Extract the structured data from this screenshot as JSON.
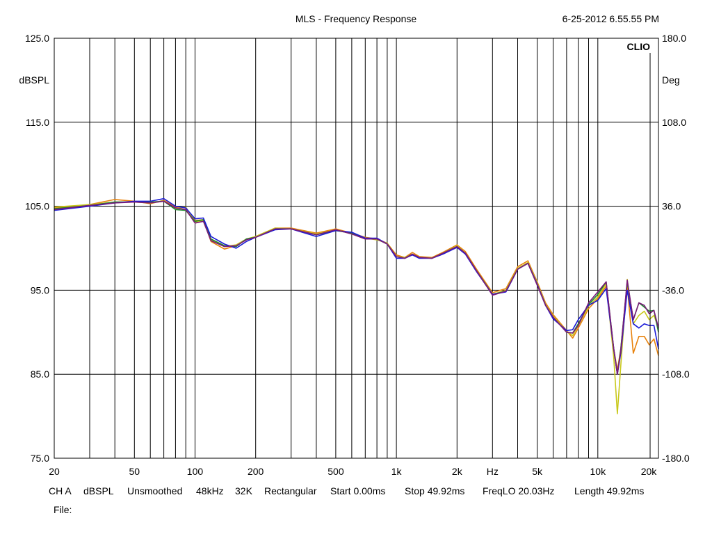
{
  "header": {
    "title": "MLS - Frequency Response",
    "timestamp": "6-25-2012 6.55.55 PM",
    "brand": "CLIO"
  },
  "axes": {
    "left_unit": "dBSPL",
    "right_unit": "Deg",
    "left_ticks": [
      "125.0",
      "115.0",
      "105.0",
      "95.0",
      "85.0",
      "75.0"
    ],
    "right_ticks": [
      "180.0",
      "108.0",
      "36.0",
      "-36.0",
      "-108.0",
      "-180.0"
    ],
    "x_ticks": [
      "20",
      "50",
      "100",
      "200",
      "500",
      "1k",
      "2k",
      "Hz",
      "5k",
      "10k",
      "20k"
    ]
  },
  "footer": {
    "channel": "CH A",
    "unit": "dBSPL",
    "smoothing": "Unsmoothed",
    "rate": "48kHz",
    "size": "32K",
    "window": "Rectangular",
    "start": "Start 0.00ms",
    "stop": "Stop 49.92ms",
    "freqlo": "FreqLO 20.03Hz",
    "length": "Length 49.92ms",
    "file_label": "File:"
  },
  "chart_data": {
    "type": "line",
    "title": "MLS - Frequency Response",
    "x_scale": "log",
    "xlim": [
      20,
      20000
    ],
    "ylim": [
      75,
      125
    ],
    "y2lim": [
      -180,
      180
    ],
    "ylabel": "dBSPL",
    "y2label": "Deg",
    "grid": true,
    "series": [
      {
        "color": "#e8820c",
        "x": [
          20,
          30,
          40,
          50,
          60,
          70,
          80,
          90,
          100,
          110,
          120,
          140,
          160,
          180,
          200,
          250,
          300,
          400,
          500,
          600,
          700,
          800,
          900,
          1000,
          1100,
          1200,
          1300,
          1500,
          1700,
          2000,
          2200,
          2500,
          3000,
          3500,
          4000,
          4500,
          5000,
          5500,
          6000,
          7000,
          7500,
          8000,
          9000,
          10000,
          11000,
          12000,
          12500,
          13000,
          14000,
          15000,
          16000,
          17000,
          18000,
          19000,
          20000
        ],
        "y": [
          104.8,
          105.2,
          105.8,
          105.6,
          105.3,
          105.7,
          104.9,
          104.8,
          103.3,
          103.4,
          100.8,
          99.9,
          100.3,
          101.0,
          101.4,
          102.4,
          102.4,
          101.8,
          102.3,
          101.8,
          101.3,
          101.1,
          100.6,
          99.2,
          98.9,
          99.5,
          99.0,
          98.9,
          99.5,
          100.4,
          99.6,
          97.5,
          94.7,
          95.2,
          97.8,
          98.5,
          96.0,
          93.5,
          92.1,
          90.2,
          89.3,
          90.5,
          92.8,
          94.0,
          95.5,
          88.0,
          85.5,
          88.0,
          95.5,
          87.5,
          89.5,
          89.5,
          88.5,
          89.2,
          87.2
        ]
      },
      {
        "color": "#c8c81a",
        "x": [
          20,
          30,
          40,
          50,
          60,
          70,
          80,
          90,
          100,
          110,
          120,
          140,
          160,
          180,
          200,
          250,
          300,
          400,
          500,
          600,
          700,
          800,
          900,
          1000,
          1100,
          1200,
          1300,
          1500,
          1700,
          2000,
          2200,
          2500,
          3000,
          3500,
          4000,
          4500,
          5000,
          5500,
          6000,
          7000,
          7500,
          8000,
          9000,
          10000,
          11000,
          12000,
          12500,
          13000,
          14000,
          15000,
          16000,
          17000,
          18000,
          19000,
          20000
        ],
        "y": [
          104.9,
          105.2,
          105.5,
          105.5,
          105.4,
          105.6,
          104.7,
          104.9,
          103.1,
          103.3,
          101.0,
          100.2,
          100.4,
          101.1,
          101.4,
          102.4,
          102.3,
          101.7,
          102.2,
          101.7,
          101.2,
          101.0,
          100.6,
          99.0,
          98.9,
          99.3,
          98.9,
          98.8,
          99.4,
          100.3,
          99.4,
          97.3,
          94.5,
          95.0,
          97.6,
          98.3,
          95.8,
          93.3,
          91.9,
          90.1,
          89.6,
          90.8,
          93.1,
          94.2,
          95.8,
          87.0,
          80.3,
          86.0,
          96.3,
          91.0,
          92.0,
          92.5,
          91.5,
          92.0,
          90.5
        ]
      },
      {
        "color": "#1a8a2a",
        "x": [
          20,
          30,
          40,
          50,
          60,
          70,
          80,
          90,
          100,
          110,
          120,
          140,
          160,
          180,
          200,
          250,
          300,
          400,
          500,
          600,
          700,
          800,
          900,
          1000,
          1100,
          1200,
          1300,
          1500,
          1700,
          2000,
          2200,
          2500,
          3000,
          3500,
          4000,
          4500,
          5000,
          5500,
          6000,
          7000,
          7500,
          8000,
          9000,
          10000,
          11000,
          12000,
          12500,
          13000,
          14000,
          15000,
          16000,
          17000,
          18000,
          19000,
          20000
        ],
        "y": [
          104.7,
          105.1,
          105.5,
          105.5,
          105.5,
          105.6,
          104.6,
          104.5,
          103.2,
          103.4,
          101.1,
          100.3,
          100.2,
          101.1,
          101.3,
          102.3,
          102.3,
          101.6,
          102.1,
          101.8,
          101.1,
          101.1,
          100.5,
          99.0,
          98.8,
          99.3,
          98.9,
          98.8,
          99.4,
          100.2,
          99.4,
          97.3,
          94.5,
          94.9,
          97.5,
          98.2,
          95.7,
          93.2,
          91.8,
          90.0,
          89.9,
          91.0,
          93.3,
          94.5,
          96.0,
          88.0,
          85.0,
          88.0,
          96.0,
          91.5,
          93.5,
          93.0,
          92.5,
          92.6,
          90.0
        ]
      },
      {
        "color": "#1a1ad8",
        "x": [
          20,
          30,
          40,
          50,
          60,
          70,
          80,
          90,
          100,
          110,
          120,
          140,
          160,
          180,
          200,
          250,
          300,
          400,
          500,
          600,
          700,
          800,
          900,
          1000,
          1100,
          1200,
          1300,
          1500,
          1700,
          2000,
          2200,
          2500,
          3000,
          3500,
          4000,
          4500,
          5000,
          5500,
          6000,
          7000,
          7500,
          8000,
          9000,
          10000,
          11000,
          12000,
          12500,
          13000,
          14000,
          15000,
          16000,
          17000,
          18000,
          19000,
          20000
        ],
        "y": [
          104.5,
          105.0,
          105.4,
          105.6,
          105.6,
          105.9,
          105.0,
          104.8,
          103.5,
          103.6,
          101.4,
          100.5,
          100.0,
          100.8,
          101.3,
          102.2,
          102.3,
          101.4,
          102.1,
          101.9,
          101.2,
          101.2,
          100.5,
          98.8,
          98.8,
          99.2,
          98.8,
          98.8,
          99.3,
          100.1,
          99.3,
          97.2,
          94.5,
          94.8,
          97.5,
          98.2,
          95.7,
          93.2,
          91.6,
          90.2,
          90.3,
          91.5,
          93.2,
          93.8,
          95.2,
          88.0,
          85.0,
          87.5,
          95.0,
          91.0,
          90.5,
          91.0,
          90.8,
          90.8,
          88.0
        ]
      },
      {
        "color": "#7a1a7a",
        "x": [
          20,
          30,
          40,
          50,
          60,
          70,
          80,
          90,
          100,
          110,
          120,
          140,
          160,
          180,
          200,
          250,
          300,
          400,
          500,
          600,
          700,
          800,
          900,
          1000,
          1100,
          1200,
          1300,
          1500,
          1700,
          2000,
          2200,
          2500,
          3000,
          3500,
          4000,
          4500,
          5000,
          5500,
          6000,
          7000,
          7500,
          8000,
          9000,
          10000,
          11000,
          12000,
          12500,
          13000,
          14000,
          15000,
          16000,
          17000,
          18000,
          19000,
          20000
        ],
        "y": [
          104.6,
          105.1,
          105.4,
          105.5,
          105.4,
          105.6,
          104.8,
          104.6,
          103.0,
          103.2,
          100.9,
          100.2,
          100.3,
          101.0,
          101.3,
          102.3,
          102.3,
          101.6,
          102.2,
          101.7,
          101.1,
          101.1,
          100.5,
          99.0,
          98.8,
          99.3,
          98.9,
          98.8,
          99.4,
          100.2,
          99.4,
          97.3,
          94.4,
          94.9,
          97.5,
          98.2,
          95.6,
          93.2,
          91.8,
          90.0,
          89.9,
          90.8,
          93.5,
          94.8,
          96.0,
          88.0,
          85.0,
          87.8,
          96.2,
          91.5,
          93.5,
          93.2,
          92.2,
          92.6,
          90.5
        ]
      }
    ]
  }
}
